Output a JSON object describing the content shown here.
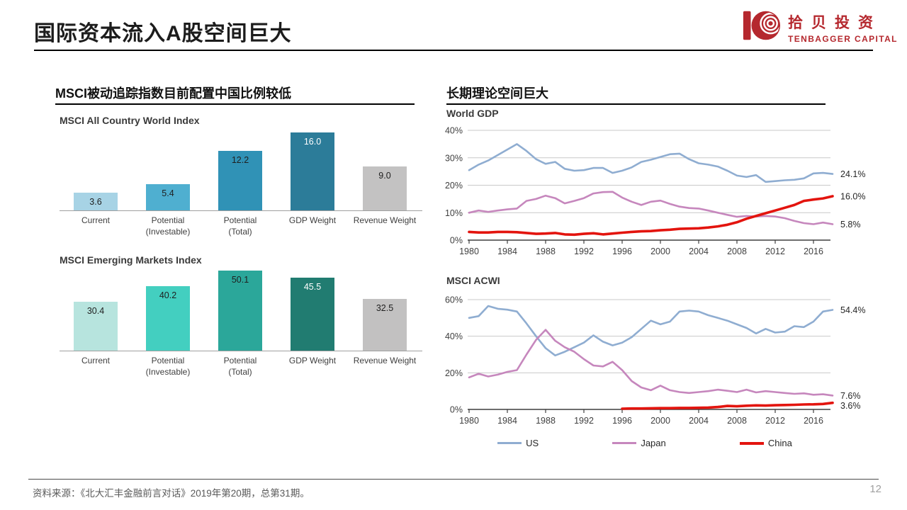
{
  "header": {
    "title": "国际资本流入A股空间巨大",
    "logo_cn": "拾贝投资",
    "logo_en": "TENBAGGER CAPITAL",
    "logo_color": "#b5282e"
  },
  "left_panel": {
    "header": "MSCI被动追踪指数目前配置中国比例较低"
  },
  "right_panel": {
    "header": "长期理论空间巨大",
    "legend": [
      {
        "label": "US",
        "color": "#8fadd1",
        "swatch_height": 3
      },
      {
        "label": "Japan",
        "color": "#c687bd",
        "swatch_height": 3
      },
      {
        "label": "China",
        "color": "#e3140e",
        "swatch_height": 4
      }
    ]
  },
  "footer": {
    "source": "资料来源：《北大汇丰金融前言对话》2019年第20期，总第31期。",
    "page_number": "12"
  },
  "chart_data": [
    {
      "type": "bar",
      "title": "MSCI All Country World Index",
      "categories": [
        "Current",
        "Potential\n(Investable)",
        "Potential\n(Total)",
        "GDP Weight",
        "Revenue Weight"
      ],
      "values": [
        3.6,
        5.4,
        12.2,
        16.0,
        9.0
      ],
      "value_labels": [
        "3.6",
        "5.4",
        "12.2",
        "16.0",
        "9.0"
      ],
      "bar_colors": [
        "#a7d3e5",
        "#4fafd0",
        "#3092b6",
        "#2c7c99",
        "#c3c2c2"
      ],
      "label_colors": [
        "#1f1f1f",
        "#1f1f1f",
        "#1f1f1f",
        "#ffffff",
        "#1f1f1f"
      ],
      "ylim": [
        0,
        16.5
      ]
    },
    {
      "type": "bar",
      "title": "MSCI Emerging Markets Index",
      "categories": [
        "Current",
        "Potential\n(Investable)",
        "Potential\n(Total)",
        "GDP Weight",
        "Revenue Weight"
      ],
      "values": [
        30.4,
        40.2,
        50.1,
        45.5,
        32.5
      ],
      "value_labels": [
        "30.4",
        "40.2",
        "50.1",
        "45.5",
        "32.5"
      ],
      "bar_colors": [
        "#b7e4de",
        "#43cfc0",
        "#2ba79a",
        "#217c71",
        "#c2c1c1"
      ],
      "label_colors": [
        "#1f1f1f",
        "#1f1f1f",
        "#1f1f1f",
        "#ffffff",
        "#1f1f1f"
      ],
      "ylim": [
        0,
        50.5
      ]
    },
    {
      "type": "line",
      "title": "World GDP",
      "x_tick_values": [
        1980,
        1984,
        1988,
        1992,
        1996,
        2000,
        2004,
        2008,
        2012,
        2016
      ],
      "x_tick_labels": [
        "1980",
        "1984",
        "1988",
        "1992",
        "1996",
        "2000",
        "2004",
        "2008",
        "2012",
        "2016"
      ],
      "x_range": [
        1980,
        2018
      ],
      "y_tick_values": [
        0,
        10,
        20,
        30,
        40
      ],
      "y_tick_labels": [
        "0%",
        "10%",
        "20%",
        "30%",
        "40%"
      ],
      "ylim": [
        0,
        40
      ],
      "series": [
        {
          "name": "US",
          "color": "#8fadd1",
          "width": 2.6,
          "x_start": 1980,
          "end_label": "24.1%",
          "values": [
            25.5,
            27.5,
            29,
            31,
            33,
            35,
            32.5,
            29.5,
            27.8,
            28.5,
            26,
            25.3,
            25.5,
            26.3,
            26.3,
            24.5,
            25.3,
            26.5,
            28.5,
            29.3,
            30.3,
            31.3,
            31.5,
            29.5,
            28,
            27.5,
            26.8,
            25.3,
            23.5,
            23,
            23.7,
            21.2,
            21.5,
            21.8,
            22,
            22.5,
            24.3,
            24.5,
            24.1
          ]
        },
        {
          "name": "Japan",
          "color": "#c687bd",
          "width": 2.6,
          "x_start": 1980,
          "end_label": "5.8%",
          "values": [
            10,
            10.8,
            10.3,
            10.8,
            11.2,
            11.5,
            14.3,
            15,
            16.2,
            15.3,
            13.4,
            14.3,
            15.3,
            17,
            17.5,
            17.6,
            15.5,
            14,
            12.8,
            14,
            14.4,
            13.2,
            12.2,
            11.7,
            11.5,
            10.8,
            10,
            9.2,
            8.5,
            8.8,
            8.6,
            8.8,
            8.6,
            8,
            7,
            6.2,
            5.8,
            6.4,
            5.8
          ]
        },
        {
          "name": "China",
          "color": "#e3140e",
          "width": 3.6,
          "x_start": 1980,
          "end_label": "16.0%",
          "values": [
            3,
            2.8,
            2.8,
            3,
            3,
            2.9,
            2.6,
            2.3,
            2.4,
            2.6,
            2.1,
            2,
            2.3,
            2.5,
            2.1,
            2.4,
            2.7,
            3,
            3.2,
            3.3,
            3.6,
            3.8,
            4.1,
            4.2,
            4.3,
            4.6,
            5,
            5.6,
            6.5,
            7.8,
            8.8,
            9.8,
            10.8,
            11.8,
            12.8,
            14.3,
            14.8,
            15.2,
            16
          ]
        }
      ]
    },
    {
      "type": "line",
      "title": "MSCI ACWI",
      "x_tick_values": [
        1980,
        1984,
        1988,
        1992,
        1996,
        2000,
        2004,
        2008,
        2012,
        2016
      ],
      "x_tick_labels": [
        "1980",
        "1984",
        "1988",
        "1992",
        "1996",
        "2000",
        "2004",
        "2008",
        "2012",
        "2016"
      ],
      "x_range": [
        1980,
        2018
      ],
      "y_tick_values": [
        0,
        20,
        40,
        60
      ],
      "y_tick_labels": [
        "0%",
        "20%",
        "40%",
        "60%"
      ],
      "ylim": [
        0,
        60
      ],
      "series": [
        {
          "name": "US",
          "color": "#8fadd1",
          "width": 2.6,
          "x_start": 1980,
          "end_label": "54.4%",
          "values": [
            50,
            51,
            56.5,
            55,
            54.5,
            53.5,
            47,
            40,
            33.5,
            29.5,
            31.5,
            34,
            36.5,
            40.5,
            37,
            35,
            36.5,
            39.5,
            44,
            48.5,
            46.5,
            48,
            53.5,
            54,
            53.5,
            51.5,
            50,
            48.5,
            46.5,
            44.5,
            41.5,
            44,
            42,
            42.5,
            45.5,
            45,
            48,
            53.5,
            54.4
          ]
        },
        {
          "name": "Japan",
          "color": "#c687bd",
          "width": 2.6,
          "x_start": 1980,
          "end_label": "7.6%",
          "values": [
            17.5,
            19.5,
            18,
            19,
            20.5,
            21.5,
            30,
            38,
            43.5,
            37.5,
            34,
            31.5,
            27.5,
            24,
            23.5,
            26,
            21.5,
            15.5,
            12,
            10.5,
            13,
            10.5,
            9.5,
            9,
            9.5,
            10,
            10.8,
            10.2,
            9.5,
            10.8,
            9.3,
            10,
            9.5,
            9,
            8.5,
            8.8,
            8,
            8.3,
            7.6
          ]
        },
        {
          "name": "China",
          "color": "#e3140e",
          "width": 3.6,
          "x_start": 1996,
          "end_label": "3.6%",
          "values": [
            0.4,
            0.5,
            0.5,
            0.6,
            0.7,
            0.7,
            0.8,
            0.8,
            0.9,
            1.0,
            1.3,
            1.9,
            1.7,
            2.0,
            2.2,
            2.1,
            2.3,
            2.4,
            2.5,
            2.7,
            2.8,
            3.0,
            3.6
          ]
        }
      ]
    }
  ]
}
